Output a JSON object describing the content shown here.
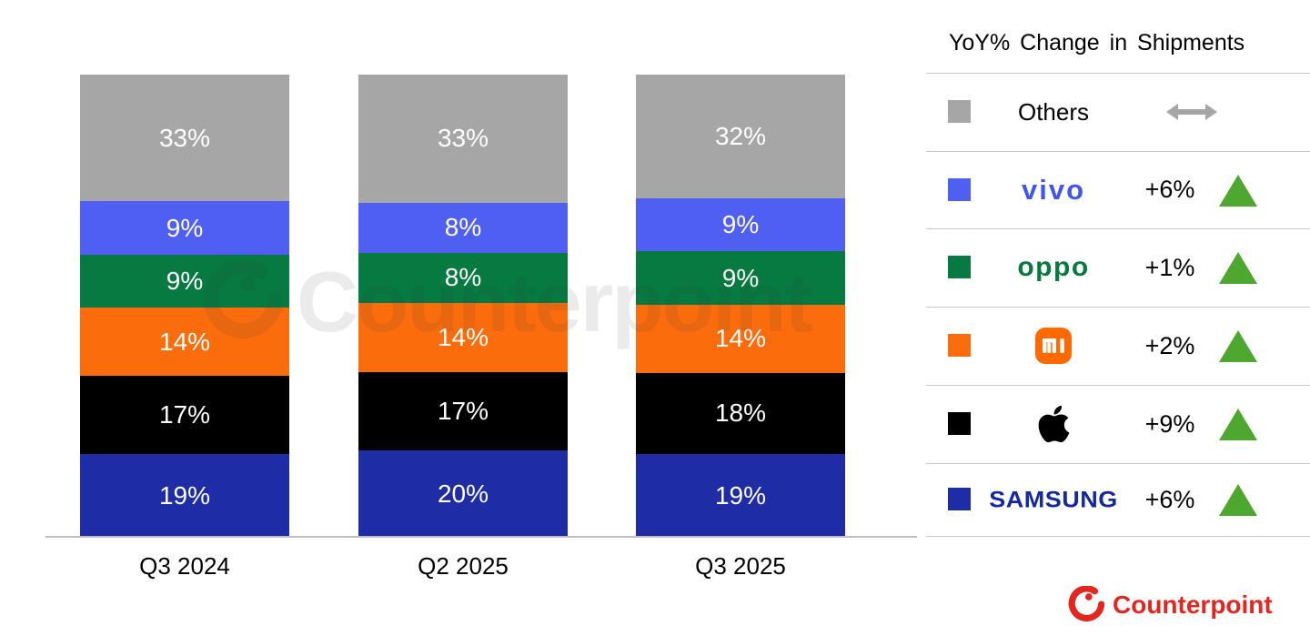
{
  "legend": {
    "title": "YoY% Change in Shipments",
    "rows": [
      {
        "brand": "Others",
        "swatch_color": "#A6A6A6",
        "logo_type": "text",
        "logo_class": "logo-others",
        "logo_text": "Others",
        "change": "",
        "trend": "flat"
      },
      {
        "brand": "vivo",
        "swatch_color": "#4E5FF2",
        "logo_type": "text",
        "logo_class": "logo-vivo",
        "logo_text": "vivo",
        "change": "+6%",
        "trend": "up"
      },
      {
        "brand": "OPPO",
        "swatch_color": "#067A41",
        "logo_type": "text",
        "logo_class": "logo-oppo",
        "logo_text": "oppo",
        "change": "+1%",
        "trend": "up"
      },
      {
        "brand": "Xiaomi",
        "swatch_color": "#FB6C0D",
        "logo_type": "mi-badge",
        "logo_class": "",
        "logo_text": "",
        "change": "+2%",
        "trend": "up"
      },
      {
        "brand": "Apple",
        "swatch_color": "#000000",
        "logo_type": "apple",
        "logo_class": "",
        "logo_text": "",
        "change": "+9%",
        "trend": "up"
      },
      {
        "brand": "Samsung",
        "swatch_color": "#1E2CA5",
        "logo_type": "text",
        "logo_class": "logo-samsung",
        "logo_text": "SAMSUNG",
        "change": "+6%",
        "trend": "up"
      }
    ]
  },
  "watermark": {
    "text": "Counterpoint"
  },
  "brand": {
    "name": "Counterpoint",
    "color": "#E4261F"
  },
  "colors": {
    "others": "#A6A6A6",
    "vivo": "#4E5FF2",
    "oppo": "#067A41",
    "xiaomi": "#FB6C0D",
    "apple": "#000000",
    "samsung": "#1E2CA5",
    "trend_up_green": "#4EA72E",
    "divider": "#C9C9C9",
    "axis": "#BFBFBF"
  },
  "chart_data": {
    "type": "bar",
    "subtype": "stacked-100-percent",
    "unit": "%",
    "categories": [
      "Q3 2024",
      "Q2 2025",
      "Q3 2025"
    ],
    "series_order": "top-to-bottom",
    "series": [
      {
        "name": "Others",
        "color": "#A6A6A6",
        "values": [
          33,
          33,
          32
        ]
      },
      {
        "name": "vivo",
        "color": "#4E5FF2",
        "values": [
          9,
          8,
          9
        ]
      },
      {
        "name": "OPPO",
        "color": "#067A41",
        "values": [
          9,
          8,
          9
        ]
      },
      {
        "name": "Xiaomi",
        "color": "#FB6C0D",
        "values": [
          14,
          14,
          14
        ]
      },
      {
        "name": "Apple",
        "color": "#000000",
        "values": [
          17,
          17,
          18
        ]
      },
      {
        "name": "Samsung",
        "color": "#1E2CA5",
        "values": [
          19,
          20,
          19
        ]
      }
    ],
    "yoy_change": {
      "Others": "flat",
      "vivo": "+6%",
      "OPPO": "+1%",
      "Xiaomi": "+2%",
      "Apple": "+9%",
      "Samsung": "+6%"
    },
    "grid": false,
    "y_axis_visible": false,
    "data_labels": "inside-white",
    "legend_position": "right"
  }
}
